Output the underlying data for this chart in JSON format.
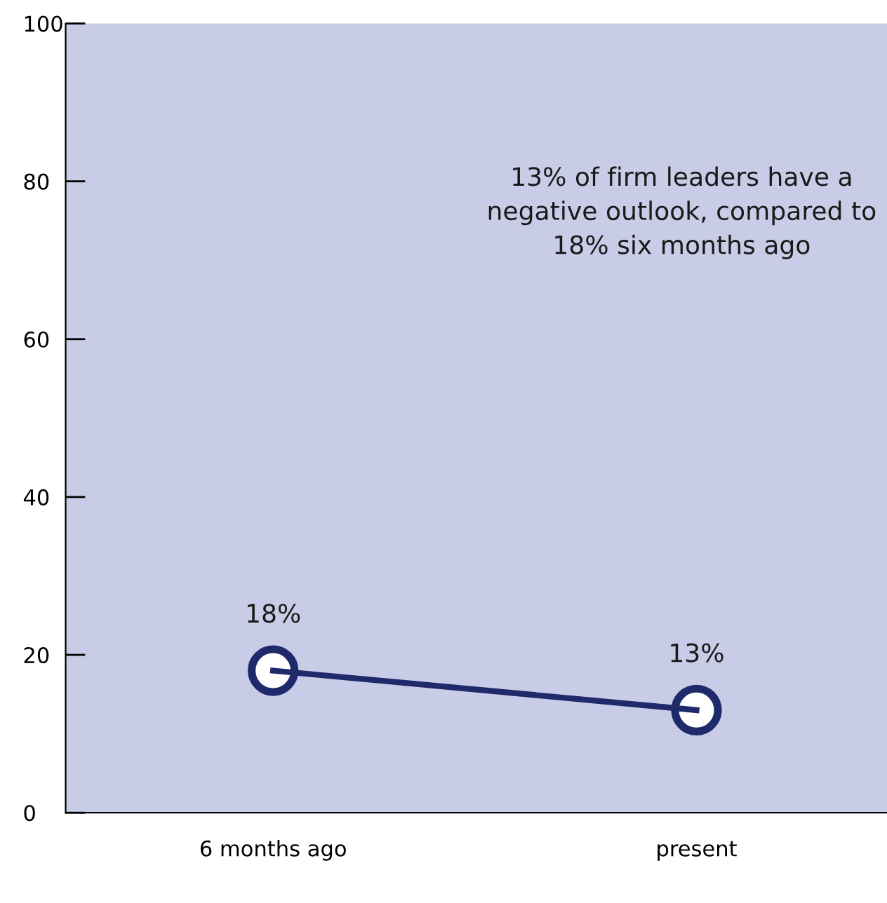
{
  "chart_data": {
    "type": "line",
    "categories": [
      "6 months ago",
      "present"
    ],
    "series": [
      {
        "color": "#1f2a6b",
        "values": [
          18,
          13
        ],
        "value_labels": [
          "18%",
          "13%"
        ]
      }
    ],
    "ylim": [
      0,
      100
    ],
    "yticks": [
      0,
      20,
      40,
      60,
      80,
      100
    ],
    "marker": "circle",
    "line_style": "solid",
    "grid": false,
    "annotations": [
      "13% of firm leaders have a negative outlook, compared to 18% six months ago"
    ]
  }
}
